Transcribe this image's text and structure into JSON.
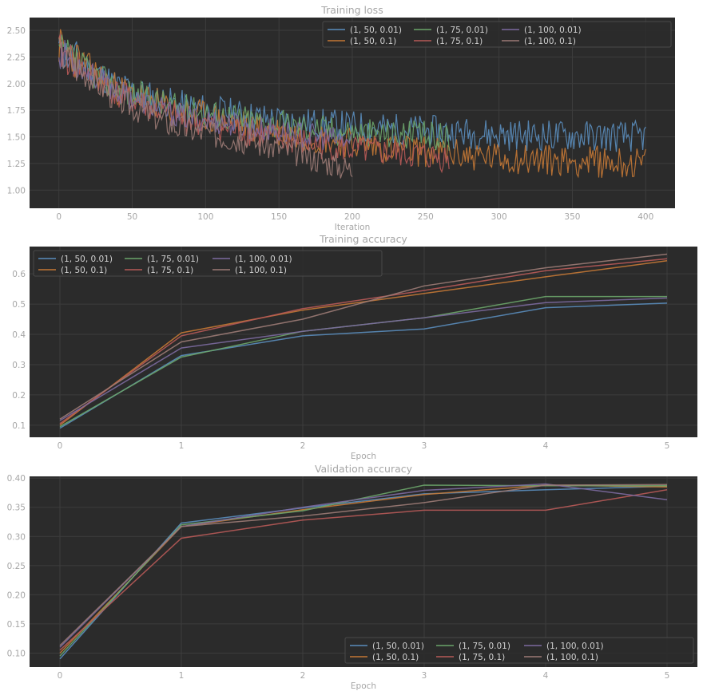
{
  "colors": {
    "background": "#2b2b2b",
    "grid": "#3d3d3d",
    "text": "#a6a6a6",
    "legend_text": "#d0d0d0",
    "legend_border": "#4a4a4a"
  },
  "chart_data": [
    {
      "type": "line",
      "title": "Training loss",
      "xlabel": "Iteration",
      "ylabel": "",
      "xlim": [
        -20,
        420
      ],
      "ylim": [
        0.83,
        2.62
      ],
      "xticks": [
        "0",
        "50",
        "100",
        "150",
        "200",
        "250",
        "300",
        "350",
        "400"
      ],
      "xtick_values": [
        0,
        50,
        100,
        150,
        200,
        250,
        300,
        350,
        400
      ],
      "yticks": [
        "1.00",
        "1.25",
        "1.50",
        "1.75",
        "2.00",
        "2.25",
        "2.50"
      ],
      "ytick_values": [
        1.0,
        1.25,
        1.5,
        1.75,
        2.0,
        2.25,
        2.5
      ],
      "grid": true,
      "legend": "top-right",
      "legend_cols": 4,
      "series": [
        {
          "name": "(1, 50, 0.01)",
          "color": "#5a8dbd",
          "knots": [
            [
              0,
              2.32
            ],
            [
              40,
              1.98
            ],
            [
              80,
              1.8
            ],
            [
              150,
              1.65
            ],
            [
              220,
              1.58
            ],
            [
              300,
              1.52
            ],
            [
              400,
              1.5
            ]
          ],
          "noise": 0.15,
          "length": 400,
          "seed": 11
        },
        {
          "name": "(1, 50, 0.1)",
          "color": "#c47835",
          "knots": [
            [
              0,
              2.35
            ],
            [
              40,
              1.95
            ],
            [
              80,
              1.75
            ],
            [
              150,
              1.55
            ],
            [
              220,
              1.4
            ],
            [
              300,
              1.3
            ],
            [
              400,
              1.25
            ]
          ],
          "noise": 0.15,
          "length": 400,
          "seed": 23
        },
        {
          "name": "(1, 75, 0.01)",
          "color": "#6ba56a",
          "knots": [
            [
              0,
              2.3
            ],
            [
              40,
              1.95
            ],
            [
              80,
              1.78
            ],
            [
              150,
              1.62
            ],
            [
              200,
              1.55
            ],
            [
              266,
              1.5
            ]
          ],
          "noise": 0.14,
          "length": 266,
          "seed": 37
        },
        {
          "name": "(1, 75, 0.1)",
          "color": "#b85a58",
          "knots": [
            [
              0,
              2.3
            ],
            [
              40,
              1.9
            ],
            [
              80,
              1.68
            ],
            [
              150,
              1.48
            ],
            [
              200,
              1.38
            ],
            [
              266,
              1.3
            ]
          ],
          "noise": 0.14,
          "length": 266,
          "seed": 41
        },
        {
          "name": "(1, 100, 0.01)",
          "color": "#7c6aa0",
          "knots": [
            [
              0,
              2.3
            ],
            [
              40,
              1.92
            ],
            [
              80,
              1.7
            ],
            [
              150,
              1.55
            ],
            [
              200,
              1.45
            ]
          ],
          "noise": 0.12,
          "length": 200,
          "seed": 53
        },
        {
          "name": "(1, 100, 0.1)",
          "color": "#9c7b76",
          "knots": [
            [
              0,
              2.3
            ],
            [
              40,
              1.85
            ],
            [
              80,
              1.6
            ],
            [
              150,
              1.4
            ],
            [
              200,
              1.2
            ]
          ],
          "noise": 0.13,
          "length": 200,
          "seed": 67
        }
      ]
    },
    {
      "type": "line",
      "title": "Training accuracy",
      "xlabel": "Epoch",
      "ylabel": "",
      "xlim": [
        -0.25,
        5.25
      ],
      "ylim": [
        0.06,
        0.69
      ],
      "xticks": [
        "0",
        "1",
        "2",
        "3",
        "4",
        "5"
      ],
      "xtick_values": [
        0,
        1,
        2,
        3,
        4,
        5
      ],
      "yticks": [
        "0.1",
        "0.2",
        "0.3",
        "0.4",
        "0.5",
        "0.6"
      ],
      "ytick_values": [
        0.1,
        0.2,
        0.3,
        0.4,
        0.5,
        0.6
      ],
      "grid": true,
      "legend": "top-left",
      "legend_cols": 4,
      "x": [
        0,
        1,
        2,
        3,
        4,
        5
      ],
      "series": [
        {
          "name": "(1, 50, 0.01)",
          "color": "#5a8dbd",
          "values": [
            0.09,
            0.33,
            0.395,
            0.418,
            0.488,
            0.503
          ]
        },
        {
          "name": "(1, 50, 0.1)",
          "color": "#c47835",
          "values": [
            0.1,
            0.405,
            0.48,
            0.535,
            0.59,
            0.643
          ]
        },
        {
          "name": "(1, 75, 0.01)",
          "color": "#6ba56a",
          "values": [
            0.095,
            0.325,
            0.41,
            0.455,
            0.525,
            0.525
          ]
        },
        {
          "name": "(1, 75, 0.1)",
          "color": "#b85a58",
          "values": [
            0.105,
            0.395,
            0.485,
            0.545,
            0.61,
            0.65
          ]
        },
        {
          "name": "(1, 100, 0.01)",
          "color": "#7c6aa0",
          "values": [
            0.115,
            0.355,
            0.41,
            0.455,
            0.505,
            0.52
          ]
        },
        {
          "name": "(1, 100, 0.1)",
          "color": "#9c7b76",
          "values": [
            0.12,
            0.375,
            0.45,
            0.56,
            0.62,
            0.665
          ]
        }
      ]
    },
    {
      "type": "line",
      "title": "Validation accuracy",
      "xlabel": "Epoch",
      "ylabel": "",
      "xlim": [
        -0.25,
        5.25
      ],
      "ylim": [
        0.076,
        0.403
      ],
      "xticks": [
        "0",
        "1",
        "2",
        "3",
        "4",
        "5"
      ],
      "xtick_values": [
        0,
        1,
        2,
        3,
        4,
        5
      ],
      "yticks": [
        "0.10",
        "0.15",
        "0.20",
        "0.25",
        "0.30",
        "0.35",
        "0.40"
      ],
      "ytick_values": [
        0.1,
        0.15,
        0.2,
        0.25,
        0.3,
        0.35,
        0.4
      ],
      "grid": true,
      "legend": "bottom-right",
      "legend_cols": 4,
      "x": [
        0,
        1,
        2,
        3,
        4,
        5
      ],
      "series": [
        {
          "name": "(1, 50, 0.01)",
          "color": "#5a8dbd",
          "values": [
            0.09,
            0.323,
            0.349,
            0.373,
            0.38,
            0.386
          ]
        },
        {
          "name": "(1, 50, 0.1)",
          "color": "#c47835",
          "values": [
            0.1,
            0.317,
            0.346,
            0.372,
            0.388,
            0.385
          ]
        },
        {
          "name": "(1, 75, 0.01)",
          "color": "#6ba56a",
          "values": [
            0.095,
            0.32,
            0.344,
            0.388,
            0.387,
            0.387
          ]
        },
        {
          "name": "(1, 75, 0.1)",
          "color": "#b85a58",
          "values": [
            0.105,
            0.297,
            0.328,
            0.345,
            0.345,
            0.38
          ]
        },
        {
          "name": "(1, 100, 0.01)",
          "color": "#7c6aa0",
          "values": [
            0.11,
            0.317,
            0.35,
            0.379,
            0.39,
            0.363
          ]
        },
        {
          "name": "(1, 100, 0.1)",
          "color": "#9c7b76",
          "values": [
            0.113,
            0.317,
            0.335,
            0.358,
            0.388,
            0.389
          ]
        }
      ]
    }
  ]
}
